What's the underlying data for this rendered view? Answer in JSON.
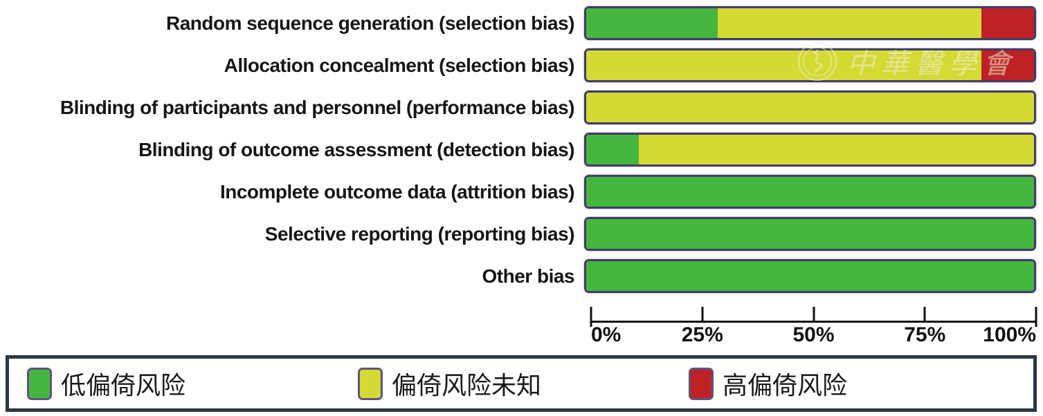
{
  "chart_data": {
    "type": "stacked_bar_horizontal",
    "categories": [
      "Random sequence generation (selection bias)",
      "Allocation concealment (selection bias)",
      "Blinding of participants and personnel (performance bias)",
      "Blinding of outcome assessment (detection bias)",
      "Incomplete outcome data (attrition bias)",
      "Selective reporting (reporting bias)",
      "Other bias"
    ],
    "series": [
      {
        "name": "low-risk",
        "label": "低偏倚风险",
        "color": "#45b63e",
        "values": [
          29.4,
          0,
          0,
          11.8,
          100,
          100,
          100
        ]
      },
      {
        "name": "unclear-risk",
        "label": "偏倚风险未知",
        "color": "#d4da33",
        "values": [
          58.8,
          88.2,
          100,
          88.2,
          0,
          0,
          0
        ]
      },
      {
        "name": "high-risk",
        "label": "高偏倚风险",
        "color": "#be2126",
        "values": [
          11.8,
          11.8,
          0,
          0,
          0,
          0,
          0
        ]
      }
    ],
    "x_axis": {
      "range": [
        0,
        100
      ],
      "ticks": [
        {
          "value": 0,
          "label": "0%"
        },
        {
          "value": 25,
          "label": "25%"
        },
        {
          "value": 50,
          "label": "50%"
        },
        {
          "value": 75,
          "label": "75%"
        },
        {
          "value": 100,
          "label": "100%"
        }
      ],
      "grid": false
    },
    "legend_position": "bottom"
  },
  "legend": {
    "items": [
      {
        "name": "low-risk",
        "label": "低偏倚风险",
        "color": "#45b63e"
      },
      {
        "name": "unclear-risk",
        "label": "偏倚风险未知",
        "color": "#d4da33"
      },
      {
        "name": "high-risk",
        "label": "高偏倚风险",
        "color": "#be2126"
      }
    ]
  },
  "watermark": {
    "text": "中華醫學會",
    "emblem": "chinese-medical-association-seal"
  },
  "colors": {
    "bar_border": "#3e3e66",
    "axis": "#111111",
    "legend_border": "#2c3740",
    "background": "#ffffff"
  }
}
